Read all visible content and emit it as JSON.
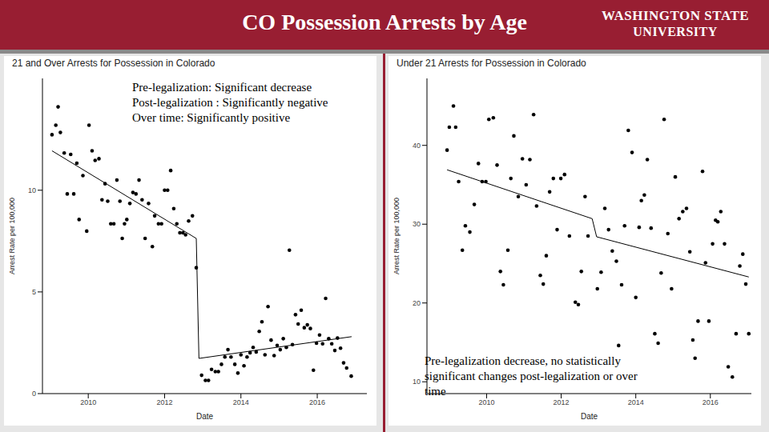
{
  "slide": {
    "title": "CO Possession Arrests by Age",
    "logo": [
      "WASHINGTON STATE",
      "UNIVERSITY"
    ]
  },
  "chart_data": [
    {
      "type": "scatter",
      "title": "21 and Over Arrests for Possession in Colorado",
      "x_label": "Date",
      "y_label": "Arrest Rate per 100,000",
      "annotation": [
        "Pre-legalization: Significant decrease",
        "Post-legalization : Significantly negative",
        "Over time: Significantly positive"
      ],
      "xlim": [
        2008.8,
        2017.3
      ],
      "xticks": [
        2010,
        2012,
        2014,
        2016
      ],
      "ylim": [
        0,
        15.5
      ],
      "yticks": [
        0,
        5,
        10
      ],
      "grid": false,
      "series": [
        {
          "type": "scatter",
          "color": "#000000",
          "marker": "circle",
          "x": [
            2009.05,
            2009.15,
            2009.21,
            2009.27,
            2009.37,
            2009.45,
            2009.54,
            2009.62,
            2009.7,
            2009.76,
            2009.86,
            2009.96,
            2010.02,
            2010.1,
            2010.18,
            2010.28,
            2010.36,
            2010.44,
            2010.51,
            2010.59,
            2010.67,
            2010.75,
            2010.83,
            2010.89,
            2010.95,
            2011.01,
            2011.09,
            2011.17,
            2011.25,
            2011.33,
            2011.41,
            2011.49,
            2011.58,
            2011.68,
            2011.74,
            2011.84,
            2011.92,
            2012.0,
            2012.08,
            2012.16,
            2012.24,
            2012.32,
            2012.4,
            2012.48,
            2012.55,
            2012.63,
            2012.73,
            2012.83,
            2012.97,
            2013.07,
            2013.15,
            2013.23,
            2013.33,
            2013.41,
            2013.49,
            2013.58,
            2013.66,
            2013.74,
            2013.84,
            2013.92,
            2014.0,
            2014.08,
            2014.16,
            2014.24,
            2014.32,
            2014.4,
            2014.48,
            2014.55,
            2014.63,
            2014.71,
            2014.79,
            2014.87,
            2014.95,
            2015.03,
            2015.11,
            2015.19,
            2015.27,
            2015.35,
            2015.43,
            2015.5,
            2015.58,
            2015.66,
            2015.74,
            2015.82,
            2015.9,
            2015.98,
            2016.06,
            2016.14,
            2016.22,
            2016.3,
            2016.38,
            2016.46,
            2016.53,
            2016.61,
            2016.69,
            2016.77,
            2016.89
          ],
          "values": [
            12.73,
            13.2,
            14.1,
            12.84,
            11.83,
            9.82,
            11.76,
            9.82,
            11.33,
            8.56,
            10.72,
            7.99,
            13.2,
            11.94,
            11.47,
            11.55,
            9.53,
            10.32,
            9.46,
            8.35,
            8.35,
            10.5,
            9.46,
            7.63,
            8.35,
            8.56,
            9.35,
            9.89,
            9.82,
            10.5,
            9.53,
            7.63,
            9.35,
            7.23,
            8.74,
            8.35,
            8.35,
            10.0,
            10.0,
            10.97,
            9.1,
            8.35,
            7.91,
            7.91,
            7.81,
            8.49,
            8.74,
            6.19,
            0.9,
            0.65,
            0.65,
            1.19,
            1.08,
            1.08,
            1.44,
            1.8,
            2.16,
            1.8,
            1.44,
            1.01,
            1.91,
            1.37,
            1.8,
            2.01,
            2.27,
            2.05,
            3.06,
            3.53,
            1.91,
            4.28,
            2.63,
            1.87,
            2.37,
            2.16,
            2.7,
            2.27,
            7.05,
            2.41,
            3.88,
            3.42,
            4.1,
            3.24,
            3.38,
            3.2,
            1.15,
            2.48,
            2.88,
            2.45,
            4.68,
            2.7,
            2.45,
            2.12,
            2.73,
            2.23,
            1.51,
            1.26,
            0.86
          ]
        },
        {
          "type": "line",
          "color": "#000000",
          "line_style": "solid",
          "x": [
            2009.05,
            2012.83,
            2012.9,
            2016.9
          ],
          "values": [
            11.94,
            7.63,
            1.73,
            2.8
          ]
        }
      ]
    },
    {
      "type": "scatter",
      "title": "Under 21 Arrests for Possession in Colorado",
      "x_label": "Date",
      "y_label": "Arrest Rate per 100,000",
      "annotation": [
        "Pre-legalization decrease, no statistically significant changes post-legalization or over time"
      ],
      "xlim": [
        2008.4,
        2017.1
      ],
      "xticks": [
        2010,
        2012,
        2014,
        2016
      ],
      "ylim": [
        8.5,
        48.5
      ],
      "yticks": [
        10,
        20,
        30,
        40
      ],
      "grid": false,
      "series": [
        {
          "type": "scatter",
          "color": "#000000",
          "marker": "circle",
          "x": [
            2008.94,
            2009.0,
            2009.11,
            2009.17,
            2009.25,
            2009.35,
            2009.43,
            2009.55,
            2009.67,
            2009.78,
            2009.88,
            2009.98,
            2010.06,
            2010.18,
            2010.28,
            2010.37,
            2010.45,
            2010.57,
            2010.65,
            2010.73,
            2010.85,
            2010.96,
            2011.06,
            2011.16,
            2011.26,
            2011.34,
            2011.44,
            2011.52,
            2011.6,
            2011.69,
            2011.79,
            2011.89,
            2011.99,
            2012.09,
            2012.22,
            2012.38,
            2012.46,
            2012.54,
            2012.64,
            2012.72,
            2012.97,
            2013.07,
            2013.17,
            2013.27,
            2013.37,
            2013.48,
            2013.54,
            2013.62,
            2013.7,
            2013.8,
            2013.9,
            2014.0,
            2014.09,
            2014.15,
            2014.23,
            2014.31,
            2014.41,
            2014.51,
            2014.6,
            2014.68,
            2014.76,
            2014.86,
            2014.96,
            2015.06,
            2015.16,
            2015.26,
            2015.36,
            2015.45,
            2015.53,
            2015.59,
            2015.67,
            2015.79,
            2015.87,
            2015.96,
            2016.06,
            2016.14,
            2016.2,
            2016.28,
            2016.38,
            2016.48,
            2016.59,
            2016.69,
            2016.79,
            2016.87,
            2016.95,
            2017.03
          ],
          "values": [
            39.4,
            42.3,
            45.0,
            42.3,
            35.4,
            26.7,
            29.8,
            29.0,
            32.5,
            37.7,
            35.4,
            35.4,
            43.3,
            43.5,
            37.5,
            24.0,
            22.3,
            26.7,
            35.8,
            41.2,
            33.5,
            38.3,
            35.0,
            38.2,
            43.9,
            32.3,
            23.5,
            22.4,
            26.0,
            34.1,
            35.8,
            29.3,
            35.8,
            36.3,
            28.5,
            20.1,
            19.8,
            24.0,
            33.5,
            28.5,
            21.8,
            23.9,
            32.0,
            29.3,
            26.6,
            25.3,
            14.6,
            22.3,
            29.8,
            41.9,
            39.1,
            20.7,
            29.6,
            33.0,
            33.7,
            38.2,
            29.5,
            16.1,
            14.9,
            23.8,
            43.3,
            28.8,
            21.8,
            36.0,
            30.7,
            31.6,
            32.0,
            26.5,
            15.3,
            13.0,
            17.7,
            36.7,
            25.1,
            17.7,
            27.5,
            30.5,
            30.3,
            31.6,
            27.5,
            11.9,
            10.6,
            16.1,
            24.7,
            26.2,
            22.4,
            16.1
          ]
        },
        {
          "type": "line",
          "color": "#000000",
          "line_style": "solid",
          "x": [
            2008.94,
            2012.83,
            2012.95,
            2017.03
          ],
          "values": [
            36.9,
            30.7,
            28.4,
            23.3
          ]
        }
      ]
    }
  ]
}
